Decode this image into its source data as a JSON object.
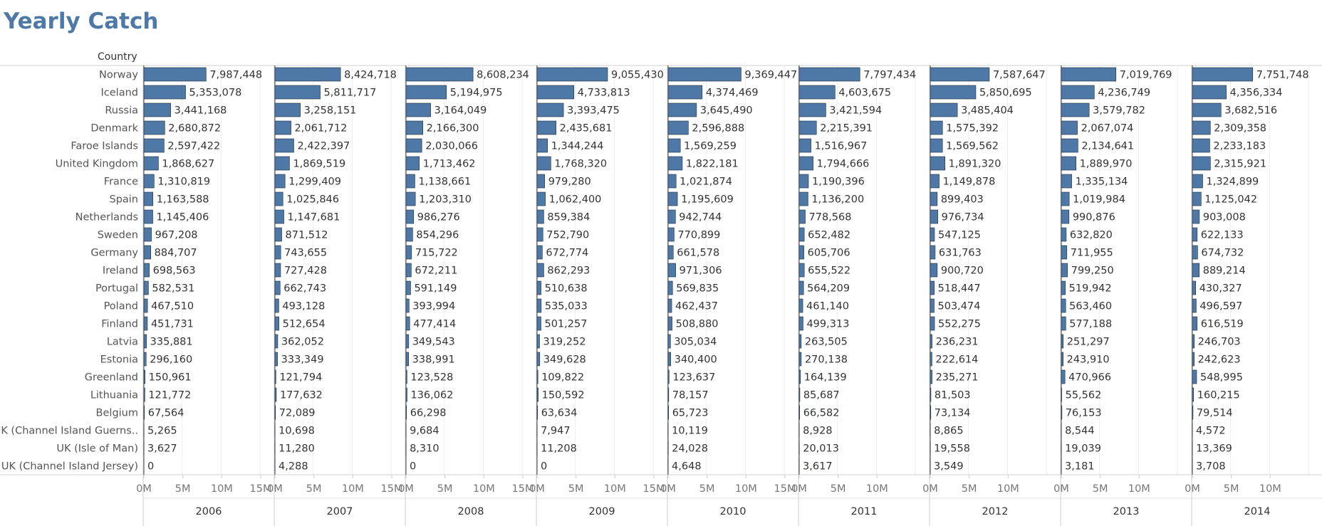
{
  "chart_data": {
    "type": "bar",
    "title": "Yearly Catch",
    "row_header": "Country",
    "categories": [
      "Norway",
      "Iceland",
      "Russia",
      "Denmark",
      "Faroe Islands",
      "United Kingdom",
      "France",
      "Spain",
      "Netherlands",
      "Sweden",
      "Germany",
      "Ireland",
      "Portugal",
      "Poland",
      "Finland",
      "Latvia",
      "Estonia",
      "Greenland",
      "Lithuania",
      "Belgium",
      "UK (Channel Island Guerns..",
      "UK (Isle of Man)",
      "UK (Channel Island Jersey)"
    ],
    "columns": [
      "2006",
      "2007",
      "2008",
      "2009",
      "2010",
      "2011",
      "2012",
      "2013",
      "2014"
    ],
    "series": [
      {
        "year": "2006",
        "values": [
          7987448,
          5353078,
          3441168,
          2680872,
          2597422,
          1868627,
          1310819,
          1163588,
          1145406,
          967208,
          884707,
          698563,
          582531,
          467510,
          451731,
          335881,
          296160,
          150961,
          121772,
          67564,
          5265,
          3627,
          0
        ],
        "labels": [
          "7,987,448",
          "5,353,078",
          "3,441,168",
          "2,680,872",
          "2,597,422",
          "1,868,627",
          "1,310,819",
          "1,163,588",
          "1,145,406",
          "967,208",
          "884,707",
          "698,563",
          "582,531",
          "467,510",
          "451,731",
          "335,881",
          "296,160",
          "150,961",
          "121,772",
          "67,564",
          "5,265",
          "3,627",
          "0"
        ],
        "ticks": [
          "0M",
          "5M",
          "10M",
          "15M"
        ],
        "xlim": [
          0,
          15000000
        ]
      },
      {
        "year": "2007",
        "values": [
          8424718,
          5811717,
          3258151,
          2061712,
          2422397,
          1869519,
          1299409,
          1025846,
          1147681,
          871512,
          743655,
          727428,
          662743,
          493128,
          512654,
          362052,
          333349,
          121794,
          177632,
          72089,
          10698,
          11280,
          4288
        ],
        "labels": [
          "8,424,718",
          "5,811,717",
          "3,258,151",
          "2,061,712",
          "2,422,397",
          "1,869,519",
          "1,299,409",
          "1,025,846",
          "1,147,681",
          "871,512",
          "743,655",
          "727,428",
          "662,743",
          "493,128",
          "512,654",
          "362,052",
          "333,349",
          "121,794",
          "177,632",
          "72,089",
          "10,698",
          "11,280",
          "4,288"
        ],
        "ticks": [
          "0M",
          "5M",
          "10M",
          "15M"
        ],
        "xlim": [
          0,
          15000000
        ]
      },
      {
        "year": "2008",
        "values": [
          8608234,
          5194975,
          3164049,
          2166300,
          2030066,
          1713462,
          1138661,
          1203310,
          986276,
          854296,
          715722,
          672211,
          591149,
          393994,
          477414,
          349543,
          338991,
          123528,
          136062,
          66298,
          9684,
          8310,
          0
        ],
        "labels": [
          "8,608,234",
          "5,194,975",
          "3,164,049",
          "2,166,300",
          "2,030,066",
          "1,713,462",
          "1,138,661",
          "1,203,310",
          "986,276",
          "854,296",
          "715,722",
          "672,211",
          "591,149",
          "393,994",
          "477,414",
          "349,543",
          "338,991",
          "123,528",
          "136,062",
          "66,298",
          "9,684",
          "8,310",
          "0"
        ],
        "ticks": [
          "0M",
          "5M",
          "10M",
          "15M"
        ],
        "xlim": [
          0,
          15000000
        ]
      },
      {
        "year": "2009",
        "values": [
          9055430,
          4733813,
          3393475,
          2435681,
          1344244,
          1768320,
          979280,
          1062400,
          859384,
          752790,
          672774,
          862293,
          510638,
          535033,
          501257,
          319252,
          349628,
          109822,
          150592,
          63634,
          7947,
          11208,
          0
        ],
        "labels": [
          "9,055,430",
          "4,733,813",
          "3,393,475",
          "2,435,681",
          "1,344,244",
          "1,768,320",
          "979,280",
          "1,062,400",
          "859,384",
          "752,790",
          "672,774",
          "862,293",
          "510,638",
          "535,033",
          "501,257",
          "319,252",
          "349,628",
          "109,822",
          "150,592",
          "63,634",
          "7,947",
          "11,208",
          "0"
        ],
        "ticks": [
          "0M",
          "5M",
          "10M",
          "15M"
        ],
        "xlim": [
          0,
          15000000
        ]
      },
      {
        "year": "2010",
        "values": [
          9369447,
          4374469,
          3645490,
          2596888,
          1569259,
          1822181,
          1021874,
          1195609,
          942744,
          770899,
          661578,
          971306,
          569835,
          462437,
          508880,
          305034,
          340400,
          123637,
          78157,
          65723,
          10119,
          24028,
          4648
        ],
        "labels": [
          "9,369,447",
          "4,374,469",
          "3,645,490",
          "2,596,888",
          "1,569,259",
          "1,822,181",
          "1,021,874",
          "1,195,609",
          "942,744",
          "770,899",
          "661,578",
          "971,306",
          "569,835",
          "462,437",
          "508,880",
          "305,034",
          "340,400",
          "123,637",
          "78,157",
          "65,723",
          "10,119",
          "24,028",
          "4,648"
        ],
        "ticks": [
          "0M",
          "5M",
          "10M",
          "15M"
        ],
        "xlim": [
          0,
          15000000
        ]
      },
      {
        "year": "2011",
        "values": [
          7797434,
          4603675,
          3421594,
          2215391,
          1516967,
          1794666,
          1190396,
          1136200,
          778568,
          652482,
          605706,
          655522,
          564209,
          461140,
          499313,
          263505,
          270138,
          164139,
          85687,
          66582,
          8928,
          20013,
          3617
        ],
        "labels": [
          "7,797,434",
          "4,603,675",
          "3,421,594",
          "2,215,391",
          "1,516,967",
          "1,794,666",
          "1,190,396",
          "1,136,200",
          "778,568",
          "652,482",
          "605,706",
          "655,522",
          "564,209",
          "461,140",
          "499,313",
          "263,505",
          "270,138",
          "164,139",
          "85,687",
          "66,582",
          "8,928",
          "20,013",
          "3,617"
        ],
        "ticks": [
          "0M",
          "5M",
          "10M"
        ],
        "xlim": [
          0,
          15000000
        ]
      },
      {
        "year": "2012",
        "values": [
          7587647,
          5850695,
          3485404,
          1575392,
          1569562,
          1891320,
          1149878,
          899403,
          976734,
          547125,
          631763,
          900720,
          518447,
          503474,
          552275,
          236231,
          222614,
          235271,
          81503,
          73134,
          8865,
          19558,
          3549
        ],
        "labels": [
          "7,587,647",
          "5,850,695",
          "3,485,404",
          "1,575,392",
          "1,569,562",
          "1,891,320",
          "1,149,878",
          "899,403",
          "976,734",
          "547,125",
          "631,763",
          "900,720",
          "518,447",
          "503,474",
          "552,275",
          "236,231",
          "222,614",
          "235,271",
          "81,503",
          "73,134",
          "8,865",
          "19,558",
          "3,549"
        ],
        "ticks": [
          "0M",
          "5M",
          "10M"
        ],
        "xlim": [
          0,
          15000000
        ]
      },
      {
        "year": "2013",
        "values": [
          7019769,
          4236749,
          3579782,
          2067074,
          2134641,
          1889970,
          1335134,
          1019984,
          990876,
          632820,
          711955,
          799250,
          519942,
          563460,
          577188,
          251297,
          243910,
          470966,
          55562,
          76153,
          8544,
          19039,
          3181
        ],
        "labels": [
          "7,019,769",
          "4,236,749",
          "3,579,782",
          "2,067,074",
          "2,134,641",
          "1,889,970",
          "1,335,134",
          "1,019,984",
          "990,876",
          "632,820",
          "711,955",
          "799,250",
          "519,942",
          "563,460",
          "577,188",
          "251,297",
          "243,910",
          "470,966",
          "55,562",
          "76,153",
          "8,544",
          "19,039",
          "3,181"
        ],
        "ticks": [
          "0M",
          "5M",
          "10M"
        ],
        "xlim": [
          0,
          15000000
        ]
      },
      {
        "year": "2014",
        "values": [
          7751748,
          4356334,
          3682516,
          2309358,
          2233183,
          2315921,
          1324899,
          1125042,
          903008,
          622133,
          674732,
          889214,
          430327,
          496597,
          616519,
          246703,
          242623,
          548995,
          160215,
          79514,
          4572,
          13369,
          3708
        ],
        "labels": [
          "7,751,748",
          "4,356,334",
          "3,682,516",
          "2,309,358",
          "2,233,183",
          "2,315,921",
          "1,324,899",
          "1,125,042",
          "903,008",
          "622,133",
          "674,732",
          "889,214",
          "430,327",
          "496,597",
          "616,519",
          "246,703",
          "242,623",
          "548,995",
          "160,215",
          "79,514",
          "4,572",
          "13,369",
          "3,708"
        ],
        "ticks": [
          "0M",
          "5M",
          "10M"
        ],
        "xlim": [
          0,
          15000000
        ]
      }
    ],
    "bar_color": "#4e79a7",
    "grid": true
  }
}
